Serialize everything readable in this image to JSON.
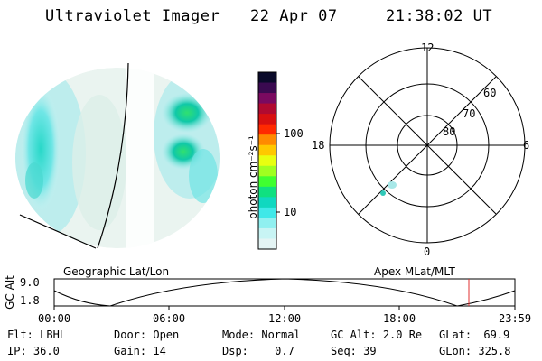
{
  "header": {
    "title": "Ultraviolet Imager",
    "date": "22 Apr 07",
    "time": "21:38:02 UT"
  },
  "colorbar": {
    "label": "photon cm⁻²s⁻¹",
    "ticks": [
      "100",
      "10"
    ],
    "colors": [
      "#0a0a2a",
      "#3a0a50",
      "#7a0a60",
      "#b00a30",
      "#d81010",
      "#ff2a00",
      "#ff8a00",
      "#ffc800",
      "#e8ff10",
      "#a0ff20",
      "#40ff30",
      "#10e080",
      "#10d8c0",
      "#40e8e8",
      "#90f0f0",
      "#c8f4f4",
      "#e4f4f4"
    ]
  },
  "polar": {
    "labels": {
      "noon": "12",
      "midnight": "0",
      "dusk": "18",
      "dawn": "6"
    },
    "lat_labels": [
      "60",
      "70",
      "80"
    ]
  },
  "timeline": {
    "left_title": "Geographic Lat/Lon",
    "right_title": "Apex  MLat/MLT",
    "ylabel": "GC Alt",
    "ymax": "9.0",
    "ymin": "1.8",
    "x_ticks": [
      "00:00",
      "06:00",
      "12:00",
      "18:00",
      "23:59"
    ],
    "marker_color": "#e03030"
  },
  "info": {
    "filter_label": "Flt:",
    "filter_value": "LBHL",
    "ip_label": "IP:",
    "ip_value": "36.0",
    "door_label": "Door:",
    "door_value": "Open",
    "gain_label": "Gain:",
    "gain_value": "14",
    "mode_label": "Mode:",
    "mode_value": "Normal",
    "dsp_label": "Dsp:",
    "dsp_value": "0.7",
    "gcalt_label": "GC Alt:",
    "gcalt_value": "2.0 Re",
    "seq_label": "Seq:",
    "seq_value": "39",
    "glat_label": "GLat:",
    "glat_value": "69.9",
    "glon_label": "GLon:",
    "glon_value": "325.8"
  }
}
